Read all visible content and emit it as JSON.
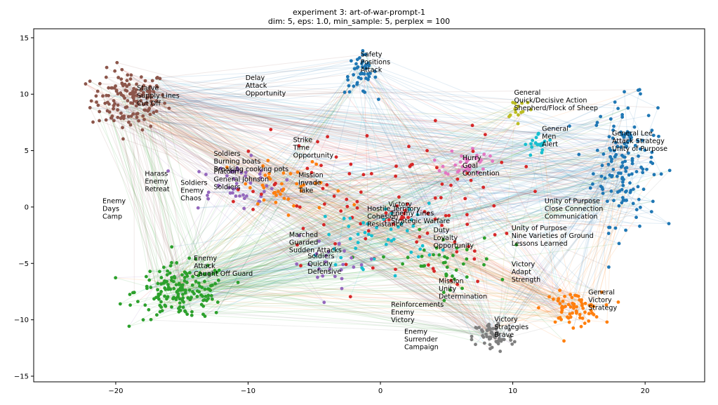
{
  "chart_data": {
    "type": "scatter",
    "title": "experiment 3: art-of-war-prompt-1",
    "subtitle": "dim: 5, eps: 1.0, min_sample: 5, perplex = 100",
    "xlim": [
      -26.2,
      24.5
    ],
    "ylim": [
      -15.5,
      15.8
    ],
    "x_ticks": [
      -20,
      -10,
      0,
      10,
      20
    ],
    "y_ticks": [
      -15,
      -10,
      -5,
      0,
      5,
      10,
      15
    ],
    "grid": false,
    "legend": "none",
    "clusters": [
      {
        "color": "#8c564b",
        "center": [
          -19,
          9.5
        ],
        "spread": [
          2.6,
          2.4
        ],
        "count": 150
      },
      {
        "color": "#1f77b4",
        "center": [
          18.5,
          4.0
        ],
        "spread": [
          2.2,
          5.0
        ],
        "count": 150
      },
      {
        "color": "#1f77b4",
        "center": [
          -1.5,
          11.8
        ],
        "spread": [
          1.1,
          1.6
        ],
        "count": 45
      },
      {
        "color": "#2ca02c",
        "center": [
          -15,
          -7.5
        ],
        "spread": [
          3.2,
          2.2
        ],
        "count": 170
      },
      {
        "color": "#ff7f0e",
        "center": [
          14.5,
          -9.0
        ],
        "spread": [
          2.0,
          1.3
        ],
        "count": 70
      },
      {
        "color": "#7f7f7f",
        "center": [
          8.5,
          -11.5
        ],
        "spread": [
          1.4,
          1.3
        ],
        "count": 60
      },
      {
        "color": "#bcbd22",
        "center": [
          10.5,
          8.8
        ],
        "spread": [
          1.0,
          0.9
        ],
        "count": 15
      },
      {
        "color": "#17becf",
        "center": [
          12,
          5.5
        ],
        "spread": [
          1.0,
          1.0
        ],
        "count": 20
      },
      {
        "color": "#e377c2",
        "center": [
          6.5,
          4.0
        ],
        "spread": [
          1.5,
          1.2
        ],
        "count": 35
      },
      {
        "color": "#9467bd",
        "center": [
          -11,
          2.0
        ],
        "spread": [
          3.5,
          2.0
        ],
        "count": 45
      },
      {
        "color": "#d62728",
        "center": [
          0,
          0
        ],
        "spread": [
          9,
          6.5
        ],
        "count": 110
      },
      {
        "color": "#ff7f0e",
        "center": [
          -7,
          1.5
        ],
        "spread": [
          4,
          2.5
        ],
        "count": 40
      },
      {
        "color": "#17becf",
        "center": [
          0,
          -2.5
        ],
        "spread": [
          4,
          2.5
        ],
        "count": 45
      },
      {
        "color": "#2ca02c",
        "center": [
          4.5,
          -5
        ],
        "spread": [
          4,
          2.5
        ],
        "count": 40
      },
      {
        "color": "#9467bd",
        "center": [
          -3.5,
          -5
        ],
        "spread": [
          3,
          2.0
        ],
        "count": 25
      }
    ],
    "edge_count": 900,
    "annotations": [
      {
        "x": -18.4,
        "y": 10.6,
        "lines": [
          "Starve",
          "Supply Lines",
          "Cut Off"
        ]
      },
      {
        "x": -10.2,
        "y": 11.5,
        "lines": [
          "Delay",
          "Attack",
          "Opportunity"
        ]
      },
      {
        "x": -1.5,
        "y": 13.6,
        "lines": [
          "Safety",
          "Positions",
          "Attack"
        ]
      },
      {
        "x": 10.1,
        "y": 10.2,
        "lines": [
          "General",
          "Quick/Decisive Action",
          "Shepherd/Flock of Sheep"
        ]
      },
      {
        "x": 12.2,
        "y": 7.0,
        "lines": [
          "General",
          "Men",
          "Alert"
        ]
      },
      {
        "x": 17.5,
        "y": 6.6,
        "lines": [
          "General Lee",
          "Attack Strategy",
          "Unity of Purpose"
        ]
      },
      {
        "x": -6.6,
        "y": 6.0,
        "lines": [
          "Strike",
          "Time",
          "Opportunity"
        ]
      },
      {
        "x": -12.6,
        "y": 4.8,
        "lines": [
          "Soldiers",
          "Burning boats",
          "Breaking cooking pots"
        ]
      },
      {
        "x": -12.6,
        "y": 3.2,
        "lines": [
          "Platoon",
          "General Johnson",
          "Soldiers"
        ]
      },
      {
        "x": -17.8,
        "y": 3.0,
        "lines": [
          "Harass",
          "Enemy",
          "Retreat"
        ]
      },
      {
        "x": -15.1,
        "y": 2.2,
        "lines": [
          "Soldiers",
          "Enemy",
          "Chaos"
        ]
      },
      {
        "x": -6.2,
        "y": 2.9,
        "lines": [
          "Mission",
          "Invade",
          "Take"
        ]
      },
      {
        "x": 6.2,
        "y": 4.4,
        "lines": [
          "Hurry",
          "Goal",
          "Contention"
        ]
      },
      {
        "x": -21.0,
        "y": 0.6,
        "lines": [
          "Enemy",
          "Days",
          "Camp"
        ]
      },
      {
        "x": 0.6,
        "y": 0.3,
        "lines": [
          "Victory"
        ]
      },
      {
        "x": -1.0,
        "y": -0.1,
        "lines": [
          "Hostile Territory",
          "Cohesion",
          "Resistance"
        ]
      },
      {
        "x": 0.8,
        "y": -0.5,
        "lines": [
          "Enemy Lines",
          "Strategic Warfare"
        ]
      },
      {
        "x": 12.4,
        "y": 0.6,
        "lines": [
          "Unity of Purpose",
          "Close Connection",
          "Communication"
        ]
      },
      {
        "x": 4.0,
        "y": -2.0,
        "lines": [
          "Duty",
          "Loyalty",
          "Opportunity"
        ]
      },
      {
        "x": 9.9,
        "y": -1.8,
        "lines": [
          "Unity of Purpose",
          "Nine Varieties of Ground",
          "Lessons Learned"
        ]
      },
      {
        "x": -6.9,
        "y": -2.4,
        "lines": [
          "Marched",
          "Guarded",
          "Sudden Attacks"
        ]
      },
      {
        "x": -5.5,
        "y": -4.3,
        "lines": [
          "Soldiers",
          "Quickly",
          "Defensive"
        ]
      },
      {
        "x": -14.1,
        "y": -4.5,
        "lines": [
          "Enemy",
          "Attack",
          "Caught Off Guard"
        ]
      },
      {
        "x": 9.9,
        "y": -5.0,
        "lines": [
          "Victory",
          "Adapt",
          "Strength"
        ]
      },
      {
        "x": 4.4,
        "y": -6.5,
        "lines": [
          "Mission",
          "Unity",
          "Determination"
        ]
      },
      {
        "x": 15.7,
        "y": -7.5,
        "lines": [
          "General",
          "Victory",
          "Strategy"
        ]
      },
      {
        "x": 0.8,
        "y": -8.6,
        "lines": [
          "Reinforcements",
          "Enemy",
          "Victory"
        ]
      },
      {
        "x": 8.6,
        "y": -9.9,
        "lines": [
          "Victory",
          "Strategies",
          "Brave"
        ]
      },
      {
        "x": 1.8,
        "y": -11.0,
        "lines": [
          "Enemy",
          "Surrender",
          "Campaign"
        ]
      }
    ]
  }
}
